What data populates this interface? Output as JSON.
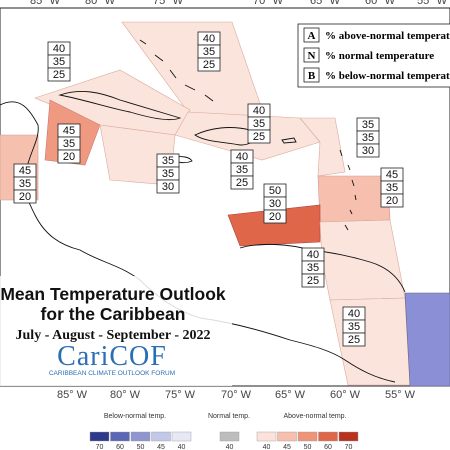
{
  "longitude_labels": {
    "top": [
      "85° W",
      "80° W",
      "75° W",
      "70° W",
      "65° W",
      "60° W",
      "55° W"
    ],
    "bottom": [
      "85° W",
      "80° W",
      "75° W",
      "70° W",
      "65° W",
      "60° W",
      "55° W"
    ]
  },
  "legend": [
    {
      "key": "A",
      "text": "% above-normal temperature"
    },
    {
      "key": "N",
      "text": "% normal temperature"
    },
    {
      "key": "B",
      "text": "% below-normal temperature"
    }
  ],
  "regions": [
    [
      40,
      35,
      25
    ],
    [
      40,
      35,
      25
    ],
    [
      45,
      35,
      20
    ],
    [
      45,
      35,
      20
    ],
    [
      35,
      35,
      30
    ],
    [
      40,
      35,
      25
    ],
    [
      40,
      35,
      25
    ],
    [
      35,
      35,
      30
    ],
    [
      45,
      35,
      20
    ],
    [
      50,
      30,
      20
    ],
    [
      40,
      35,
      25
    ],
    [
      40,
      35,
      25
    ]
  ],
  "title": {
    "line1": "Mean Temperature Outlook",
    "line2": "for the Caribbean",
    "period": "July - August - September - 2022",
    "logo": "CariCOF",
    "logo_subtitle": "CARIBBEAN CLIMATE OUTLOOK FORUM"
  },
  "colorbar": {
    "below_label": "Below-normal temp.",
    "normal_label": "Normal temp.",
    "above_label": "Above-normal temp.",
    "below_ticks": [
      70,
      60,
      50,
      45,
      40
    ],
    "normal_ticks": [
      40
    ],
    "above_ticks": [
      40,
      45,
      50,
      60,
      70
    ]
  }
}
